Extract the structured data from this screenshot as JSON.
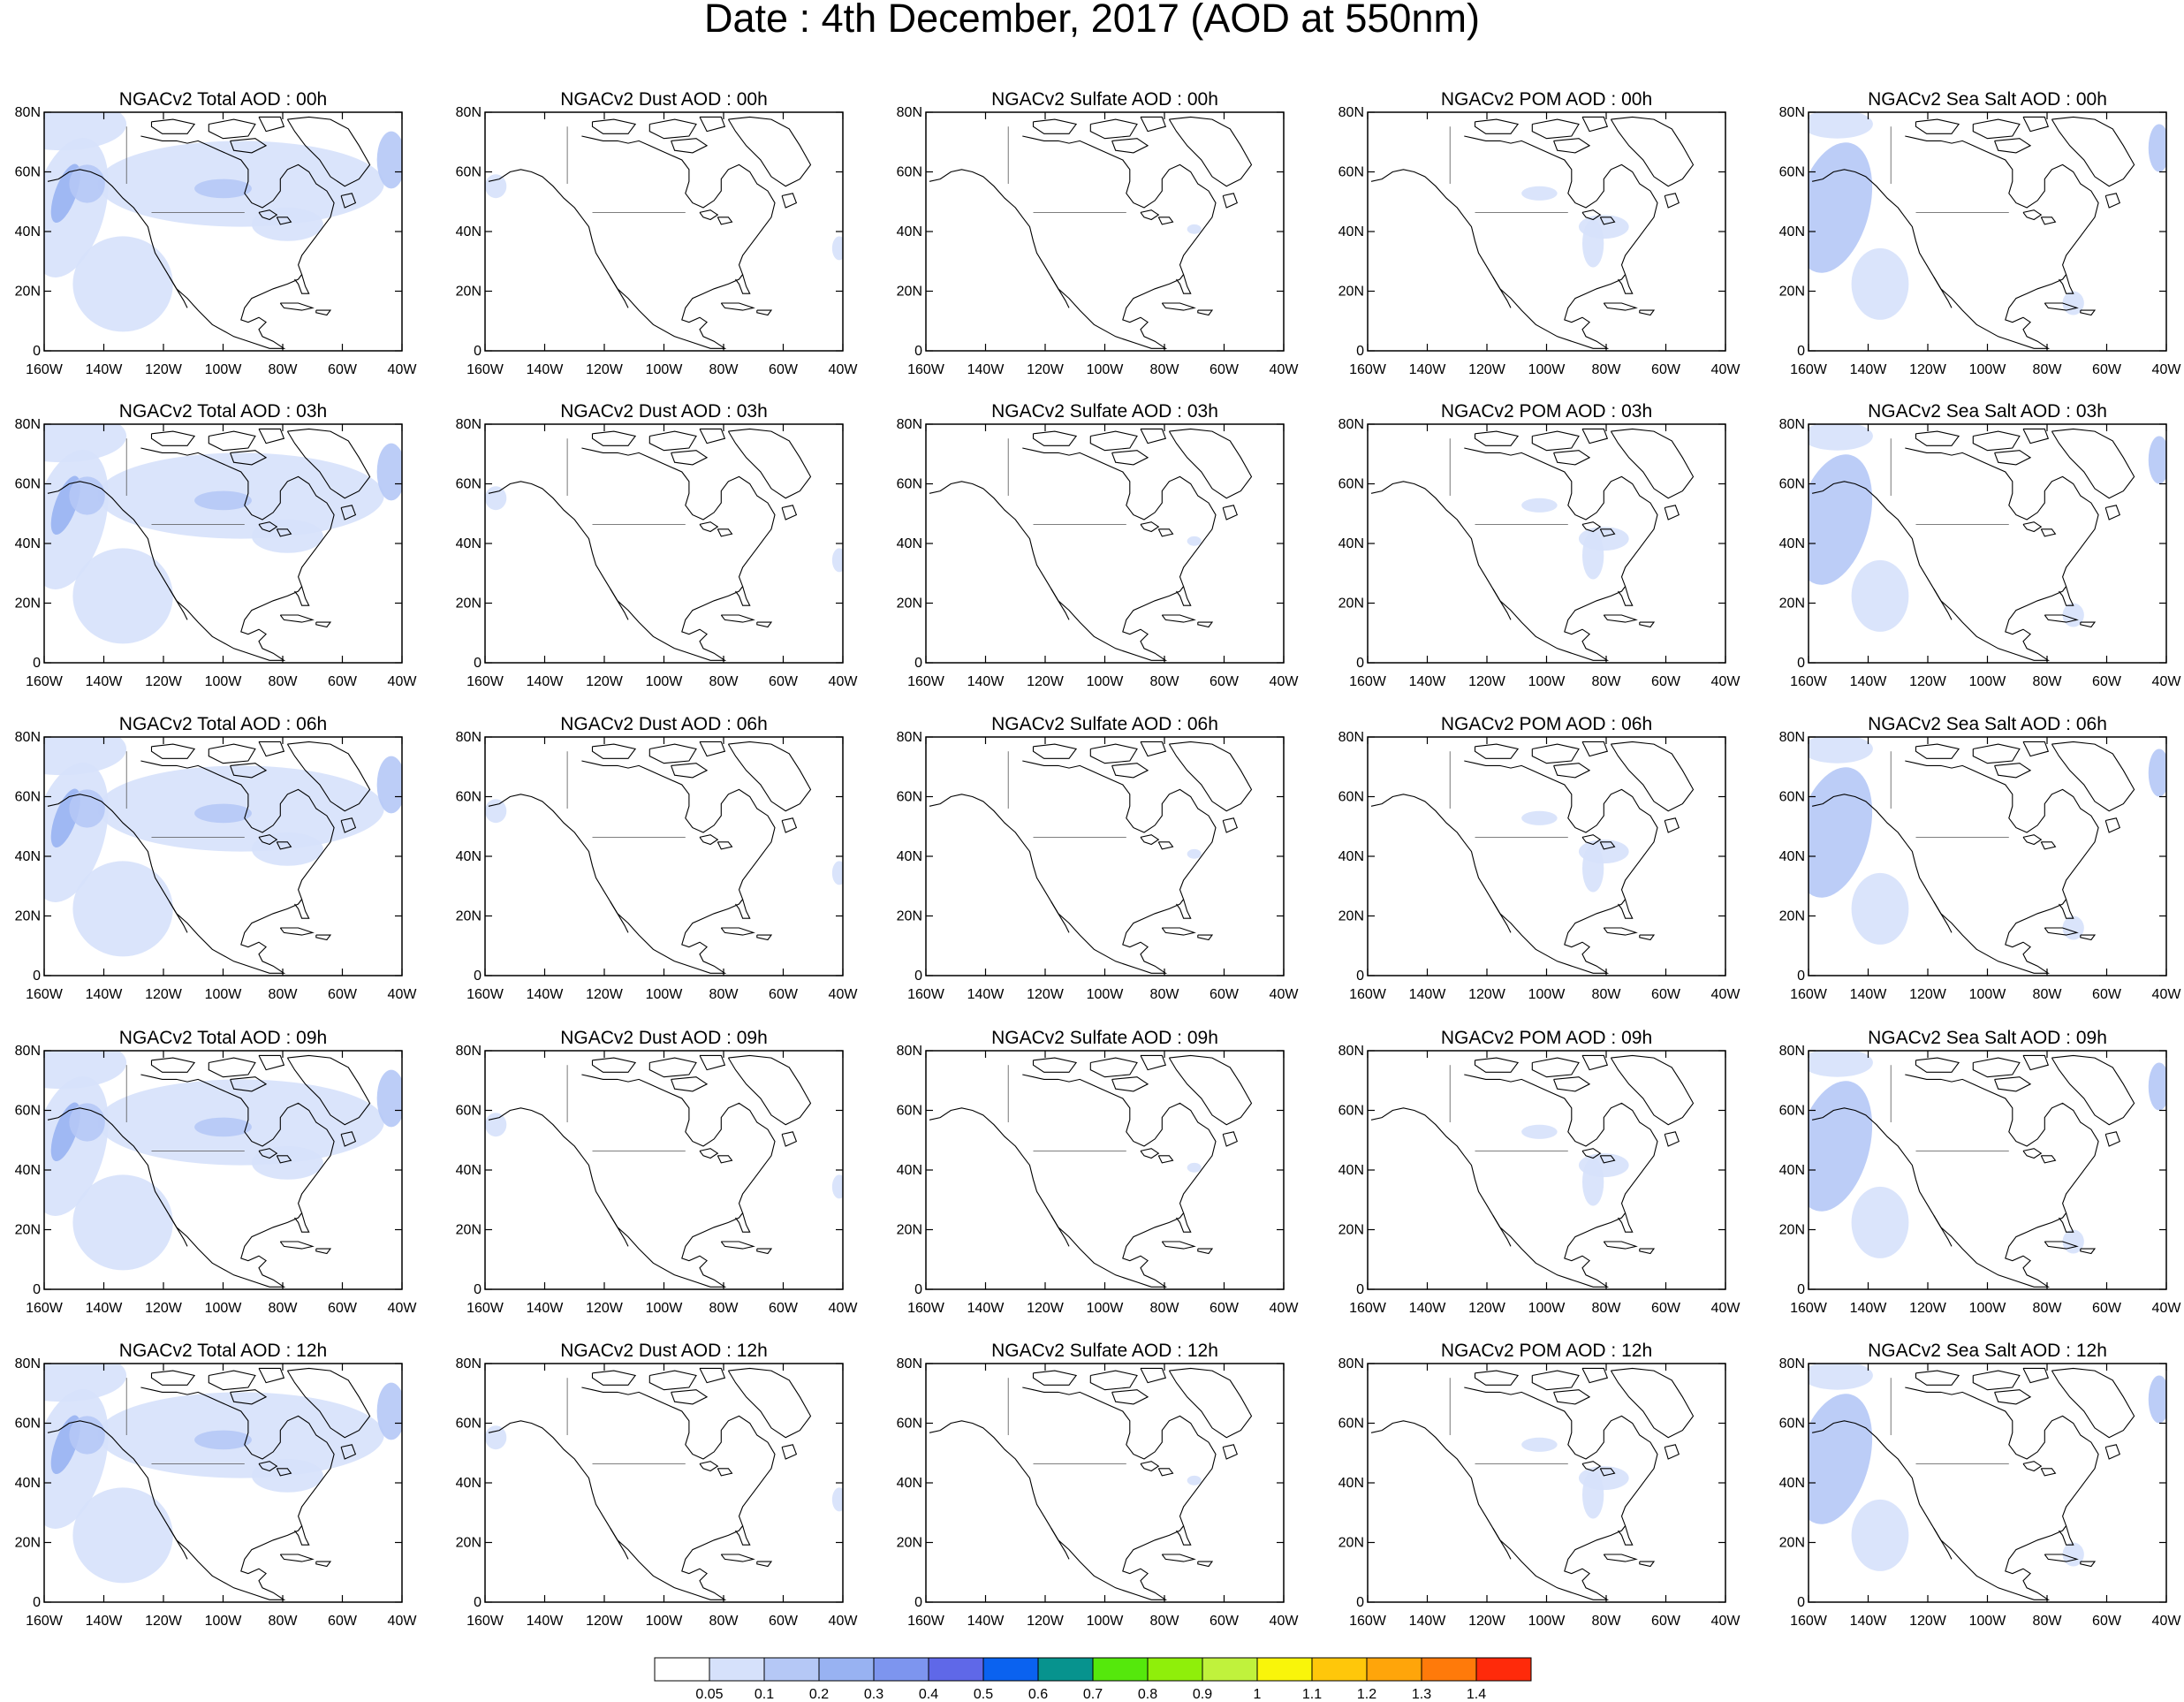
{
  "title": "Date : 4th December, 2017 (AOD at 550nm)",
  "lat_labels": [
    "0",
    "20N",
    "40N",
    "60N",
    "80N"
  ],
  "lon_labels": [
    "160W",
    "140W",
    "120W",
    "100W",
    "80W",
    "60W",
    "40W"
  ],
  "panels": [
    [
      "NGACv2 Total AOD : 00h",
      "NGACv2 Dust AOD : 00h",
      "NGACv2 Sulfate AOD : 00h",
      "NGACv2 POM AOD : 00h",
      "NGACv2 Sea Salt AOD : 00h"
    ],
    [
      "NGACv2 Total AOD : 03h",
      "NGACv2 Dust AOD : 03h",
      "NGACv2 Sulfate AOD : 03h",
      "NGACv2 POM AOD : 03h",
      "NGACv2 Sea Salt AOD : 03h"
    ],
    [
      "NGACv2 Total AOD : 06h",
      "NGACv2 Dust AOD : 06h",
      "NGACv2 Sulfate AOD : 06h",
      "NGACv2 POM AOD : 06h",
      "NGACv2 Sea Salt AOD : 06h"
    ],
    [
      "NGACv2 Total AOD : 09h",
      "NGACv2 Dust AOD : 09h",
      "NGACv2 Sulfate AOD : 09h",
      "NGACv2 POM AOD : 09h",
      "NGACv2 Sea Salt  AOD : 09h"
    ],
    [
      "NGACv2 Total AOD  : 12h",
      "NGACv2 Dust AOD : 12h",
      "NGACv2 Sulfate AOD : 12h",
      "NGACv2 POM  AOD : 12h",
      "NGACv2 Sea Salt  AOD : 12h"
    ]
  ],
  "colorbar": {
    "labels": [
      "0.05",
      "0.1",
      "0.2",
      "0.3",
      "0.4",
      "0.5",
      "0.6",
      "0.7",
      "0.8",
      "0.9",
      "1",
      "1.1",
      "1.2",
      "1.3",
      "1.4"
    ],
    "colors": [
      "#ffffff",
      "#d6e1fb",
      "#b5c8f6",
      "#98b2f2",
      "#7d95ef",
      "#5f68e8",
      "#0a62f0",
      "#07938e",
      "#55e80c",
      "#8fef0a",
      "#c0f23c",
      "#f9f50a",
      "#ffc70a",
      "#ffa50a",
      "#ff7a0a",
      "#ff2a0a"
    ]
  }
}
